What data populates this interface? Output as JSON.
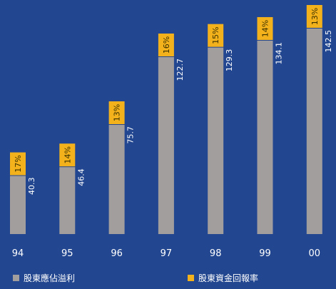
{
  "chart_data": {
    "type": "bar",
    "title": "",
    "xlabel": "",
    "ylabel": "",
    "ylim": [
      0,
      150
    ],
    "grid": false,
    "legend_position": "bottom",
    "categories": [
      "94",
      "95",
      "96",
      "97",
      "98",
      "99",
      "00"
    ],
    "series": [
      {
        "name": "股東應佔溢利",
        "values": [
          40.3,
          46.4,
          75.7,
          122.7,
          129.3,
          134.1,
          142.5
        ],
        "value_labels": [
          "40.3",
          "46.4",
          "75.7",
          "122.7",
          "129.3",
          "134.1",
          "142.5"
        ]
      },
      {
        "name": "股東資金回報率",
        "values": [
          17,
          14,
          13,
          16,
          15,
          14,
          13
        ],
        "value_labels": [
          "17%",
          "14%",
          "13%",
          "16%",
          "15%",
          "14%",
          "13%"
        ]
      }
    ],
    "colors": {
      "background": "#22468f",
      "profit_bar": "#a39e9e",
      "return_box": "#f3b21c",
      "text": "#ffffff",
      "box_text": "#3a3000"
    }
  }
}
